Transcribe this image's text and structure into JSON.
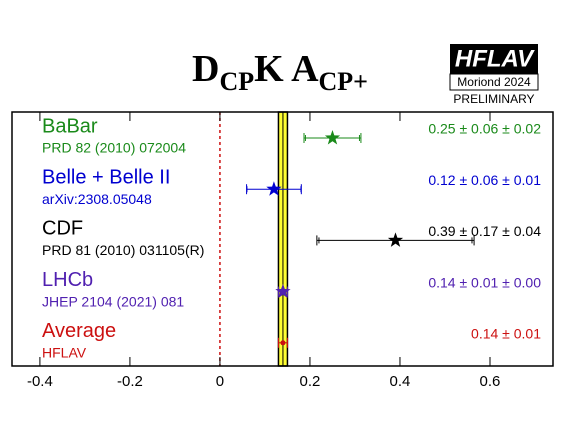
{
  "chart_data": {
    "type": "forest",
    "title_segments": [
      {
        "text": "D",
        "sub": false
      },
      {
        "text": "CP",
        "sub": true
      },
      {
        "text": "K A",
        "sub": false
      },
      {
        "text": "CP+",
        "sub": true
      }
    ],
    "logo": {
      "name": "HFLAV",
      "event": "Moriond 2024",
      "status": "PRELIMINARY"
    },
    "categories": [
      "BaBar",
      "Belle + Belle II",
      "CDF",
      "LHCb",
      "Average"
    ],
    "references": [
      "PRD 82 (2010) 072004",
      "arXiv:2308.05048",
      "PRD 81 (2010) 031105(R)",
      "JHEP 2104 (2021) 081",
      "HFLAV"
    ],
    "values": [
      0.25,
      0.12,
      0.39,
      0.14,
      0.14
    ],
    "stat_errors": [
      0.06,
      0.06,
      0.17,
      0.01,
      0.01
    ],
    "syst_errors": [
      0.02,
      0.01,
      0.04,
      0.0,
      null
    ],
    "value_labels": [
      "0.25 ± 0.06 ± 0.02",
      "0.12 ± 0.06 ± 0.01",
      "0.39 ± 0.17 ± 0.04",
      "0.14 ± 0.01 ± 0.00",
      "0.14 ± 0.01"
    ],
    "colors": [
      "#1a8a1a",
      "#0000d0",
      "#000000",
      "#5020b0",
      "#cc1010"
    ],
    "average_index": 4,
    "band_color": "#ffff33",
    "reference_line": 0,
    "xlim": [
      -0.462,
      0.74
    ],
    "xticks": [
      -0.4,
      -0.2,
      0,
      0.2,
      0.4,
      0.6
    ]
  }
}
